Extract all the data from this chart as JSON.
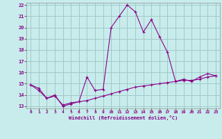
{
  "xlabel": "Windchill (Refroidissement éolien,°C)",
  "background_color": "#c8ecec",
  "grid_color": "#a0c8c8",
  "line_color": "#880088",
  "x_values": [
    0,
    1,
    2,
    3,
    4,
    5,
    6,
    7,
    8,
    9,
    10,
    11,
    12,
    13,
    14,
    15,
    16,
    17,
    18,
    19,
    20,
    21,
    22,
    23
  ],
  "curve1_y": [
    14.9,
    14.6,
    13.7,
    14.0,
    13.0,
    13.2,
    13.4,
    15.6,
    14.4,
    14.5,
    20.0,
    21.0,
    22.0,
    21.4,
    19.6,
    20.7,
    19.2,
    17.8,
    15.2,
    15.4,
    15.2,
    15.6,
    15.9,
    15.7
  ],
  "curve2_y": [
    14.9,
    14.4,
    13.7,
    13.9,
    13.1,
    13.3,
    13.4,
    13.5,
    13.7,
    13.9,
    14.1,
    14.3,
    14.5,
    14.7,
    14.8,
    14.9,
    15.0,
    15.1,
    15.2,
    15.3,
    15.3,
    15.4,
    15.6,
    15.7
  ],
  "ylim": [
    13,
    22
  ],
  "xlim": [
    -0.5,
    23.5
  ],
  "yticks": [
    13,
    14,
    15,
    16,
    17,
    18,
    19,
    20,
    21,
    22
  ],
  "xticks": [
    0,
    1,
    2,
    3,
    4,
    5,
    6,
    7,
    8,
    9,
    10,
    11,
    12,
    13,
    14,
    15,
    16,
    17,
    18,
    19,
    20,
    21,
    22,
    23
  ]
}
